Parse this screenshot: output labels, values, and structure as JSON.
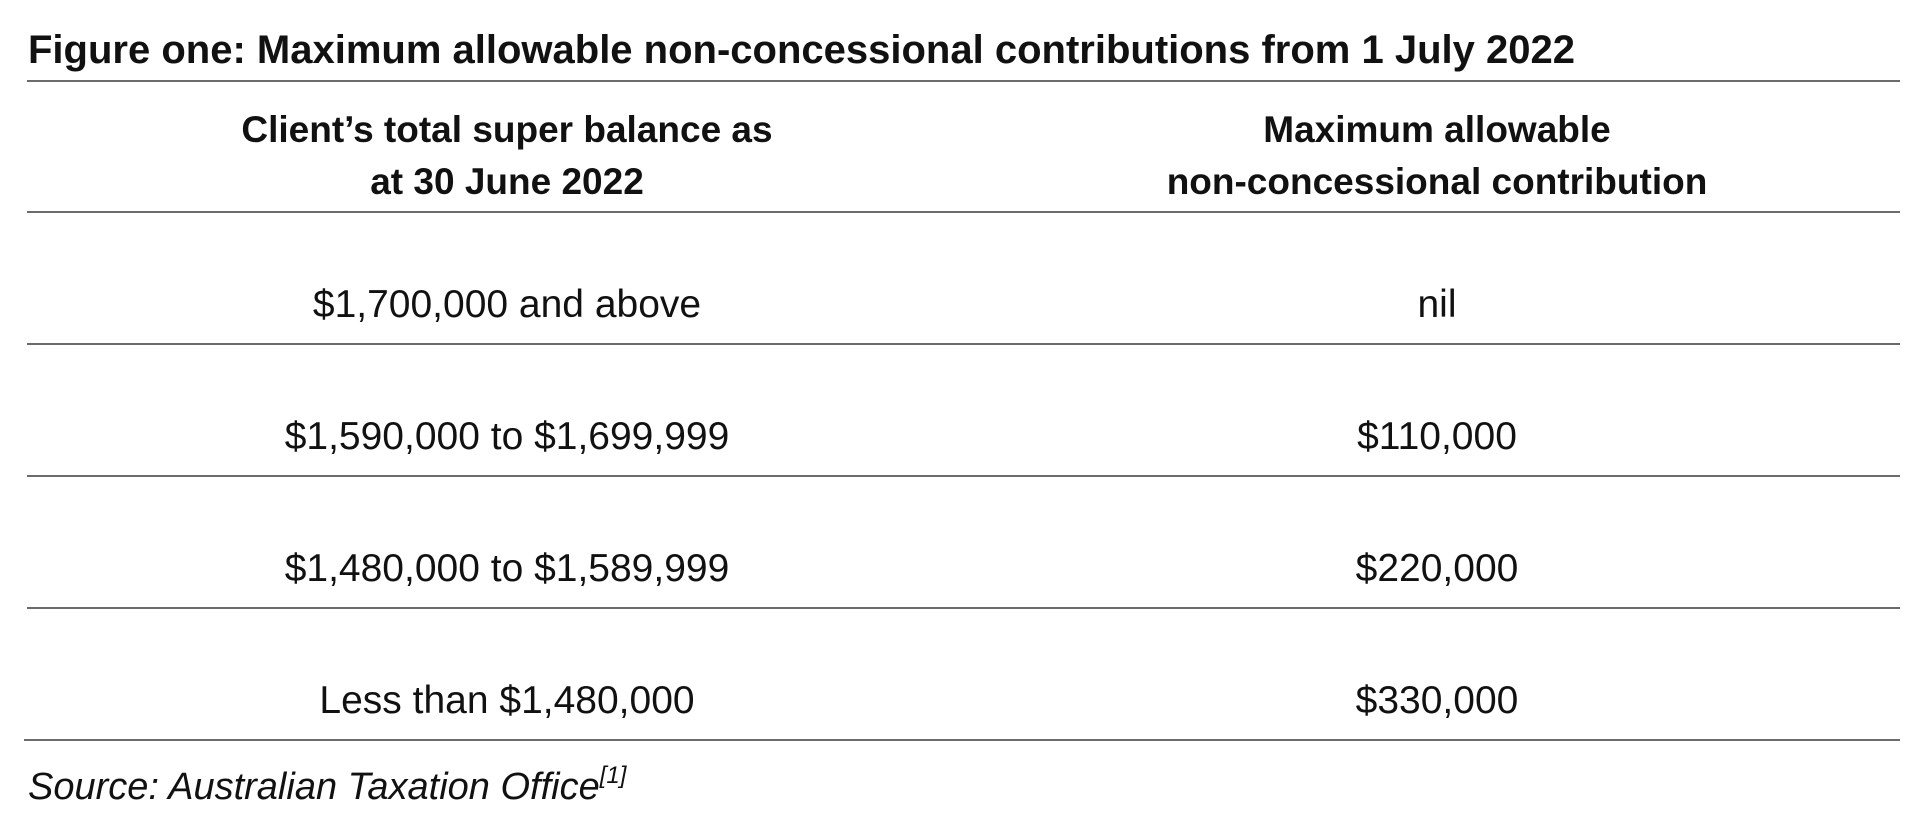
{
  "figure": {
    "title": "Figure one: Maximum allowable non-concessional contributions from 1 July 2022"
  },
  "table": {
    "headers": {
      "balance_line1": "Client’s total super balance as",
      "balance_line2": "at 30 June 2022",
      "contribution_line1": "Maximum allowable",
      "contribution_line2": "non-concessional contribution"
    },
    "rows": [
      {
        "balance": "$1,700,000 and above",
        "contribution": "nil"
      },
      {
        "balance": "$1,590,000 to $1,699,999",
        "contribution": "$110,000"
      },
      {
        "balance": "$1,480,000 to $1,589,999",
        "contribution": "$220,000"
      },
      {
        "balance": "Less than $1,480,000",
        "contribution": "$330,000"
      }
    ]
  },
  "source": {
    "text": "Source: Australian Taxation Office",
    "footnote": "[1]"
  }
}
